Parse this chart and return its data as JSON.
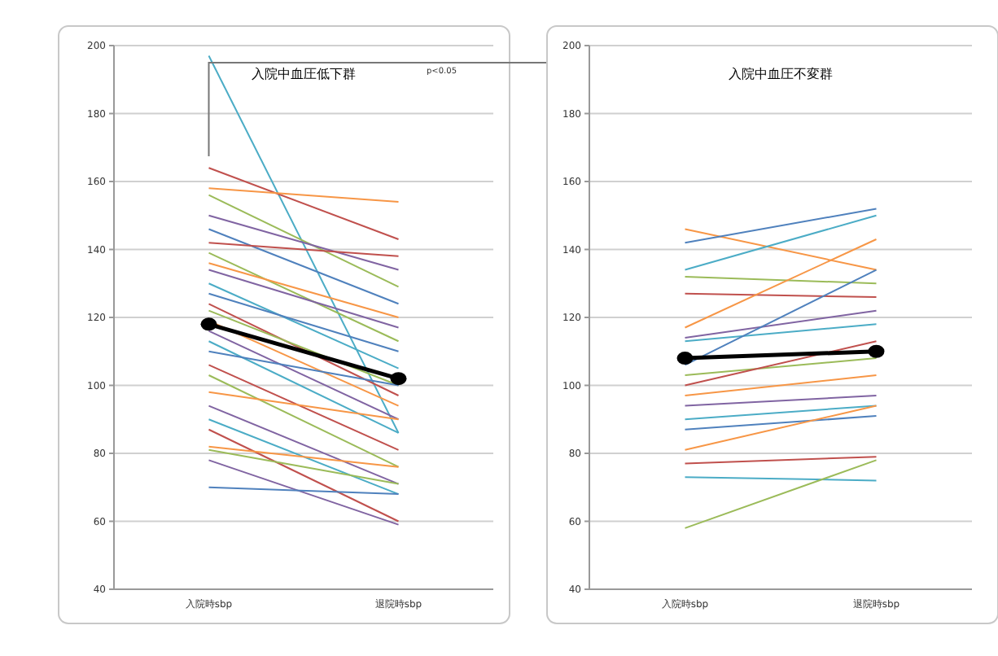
{
  "chart_data": [
    {
      "type": "line",
      "title": "入院中血圧低下群",
      "categories": [
        "入院時sbp",
        "退院時sbp"
      ],
      "ylim": [
        40,
        200
      ],
      "yticks": [
        40,
        60,
        80,
        100,
        120,
        140,
        160,
        180,
        200
      ],
      "grid": "y",
      "annotations": [
        "p<0.05"
      ],
      "series": [
        {
          "color": "#4bacc6",
          "values": [
            197,
            86
          ]
        },
        {
          "color": "#c0504d",
          "values": [
            164,
            143
          ]
        },
        {
          "color": "#f79646",
          "values": [
            158,
            154
          ]
        },
        {
          "color": "#9bbb59",
          "values": [
            156,
            129
          ]
        },
        {
          "color": "#8064a2",
          "values": [
            150,
            134
          ]
        },
        {
          "color": "#4f81bd",
          "values": [
            146,
            124
          ]
        },
        {
          "color": "#c0504d",
          "values": [
            142,
            138
          ]
        },
        {
          "color": "#9bbb59",
          "values": [
            139,
            113
          ]
        },
        {
          "color": "#f79646",
          "values": [
            136,
            120
          ]
        },
        {
          "color": "#8064a2",
          "values": [
            134,
            117
          ]
        },
        {
          "color": "#4bacc6",
          "values": [
            130,
            105
          ]
        },
        {
          "color": "#4f81bd",
          "values": [
            127,
            110
          ]
        },
        {
          "color": "#c0504d",
          "values": [
            124,
            97
          ]
        },
        {
          "color": "#9bbb59",
          "values": [
            122,
            100
          ]
        },
        {
          "color": "#f79646",
          "values": [
            119,
            94
          ]
        },
        {
          "color": "#8064a2",
          "values": [
            116,
            90
          ]
        },
        {
          "color": "#4bacc6",
          "values": [
            113,
            86
          ]
        },
        {
          "color": "#4f81bd",
          "values": [
            110,
            100
          ]
        },
        {
          "color": "#c0504d",
          "values": [
            106,
            81
          ]
        },
        {
          "color": "#9bbb59",
          "values": [
            103,
            76
          ]
        },
        {
          "color": "#f79646",
          "values": [
            98,
            90
          ]
        },
        {
          "color": "#8064a2",
          "values": [
            94,
            71
          ]
        },
        {
          "color": "#4bacc6",
          "values": [
            90,
            68
          ]
        },
        {
          "color": "#c0504d",
          "values": [
            87,
            60
          ]
        },
        {
          "color": "#f79646",
          "values": [
            82,
            76
          ]
        },
        {
          "color": "#9bbb59",
          "values": [
            81,
            71
          ]
        },
        {
          "color": "#8064a2",
          "values": [
            78,
            59
          ]
        },
        {
          "color": "#4f81bd",
          "values": [
            70,
            68
          ]
        },
        {
          "color": "#000000",
          "values": [
            118,
            102
          ],
          "marker": "circle"
        }
      ]
    },
    {
      "type": "line",
      "title": "入院中血圧不変群",
      "categories": [
        "入院時sbp",
        "退院時sbp"
      ],
      "ylim": [
        40,
        200
      ],
      "yticks": [
        40,
        60,
        80,
        100,
        120,
        140,
        160,
        180,
        200
      ],
      "grid": "y",
      "series": [
        {
          "color": "#f79646",
          "values": [
            146,
            134
          ]
        },
        {
          "color": "#4f81bd",
          "values": [
            142,
            152
          ]
        },
        {
          "color": "#4bacc6",
          "values": [
            134,
            150
          ]
        },
        {
          "color": "#9bbb59",
          "values": [
            132,
            130
          ]
        },
        {
          "color": "#c0504d",
          "values": [
            127,
            126
          ]
        },
        {
          "color": "#f79646",
          "values": [
            117,
            143
          ]
        },
        {
          "color": "#8064a2",
          "values": [
            114,
            122
          ]
        },
        {
          "color": "#4bacc6",
          "values": [
            113,
            118
          ]
        },
        {
          "color": "#4f81bd",
          "values": [
            106,
            134
          ]
        },
        {
          "color": "#9bbb59",
          "values": [
            103,
            108
          ]
        },
        {
          "color": "#c0504d",
          "values": [
            100,
            113
          ]
        },
        {
          "color": "#f79646",
          "values": [
            97,
            103
          ]
        },
        {
          "color": "#8064a2",
          "values": [
            94,
            97
          ]
        },
        {
          "color": "#4bacc6",
          "values": [
            90,
            94
          ]
        },
        {
          "color": "#4f81bd",
          "values": [
            87,
            91
          ]
        },
        {
          "color": "#f79646",
          "values": [
            81,
            94
          ]
        },
        {
          "color": "#c0504d",
          "values": [
            77,
            79
          ]
        },
        {
          "color": "#4bacc6",
          "values": [
            73,
            72
          ]
        },
        {
          "color": "#9bbb59",
          "values": [
            58,
            78
          ]
        },
        {
          "color": "#000000",
          "values": [
            108,
            110
          ],
          "marker": "circle"
        }
      ]
    }
  ]
}
